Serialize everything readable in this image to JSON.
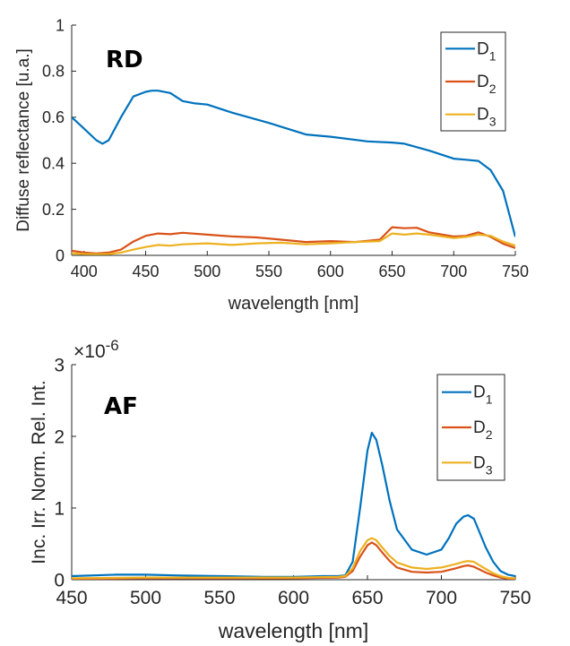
{
  "chart_data": [
    {
      "type": "line",
      "panel_tag": "RD",
      "title": "",
      "xlabel": "wavelength [nm]",
      "ylabel": "Diffuse reflectance [u.a.]",
      "xlim": [
        390,
        750
      ],
      "ylim": [
        0,
        1
      ],
      "xticks": [
        400,
        450,
        500,
        550,
        600,
        650,
        700,
        750
      ],
      "yticks": [
        0,
        0.2,
        0.4,
        0.6,
        0.8,
        1
      ],
      "ytick_labels": [
        "0",
        "0.2",
        "0.4",
        "0.6",
        "0.8",
        "1"
      ],
      "grid": false,
      "legend_position": "top-right",
      "series": [
        {
          "name": "D1",
          "label_main": "D",
          "label_sub": "1",
          "color": "#0072BD",
          "x": [
            390,
            400,
            410,
            415,
            420,
            430,
            440,
            450,
            455,
            460,
            470,
            480,
            490,
            500,
            520,
            550,
            580,
            600,
            630,
            650,
            660,
            680,
            700,
            710,
            720,
            730,
            740,
            750
          ],
          "y": [
            0.6,
            0.55,
            0.5,
            0.485,
            0.5,
            0.6,
            0.69,
            0.71,
            0.715,
            0.715,
            0.705,
            0.67,
            0.66,
            0.655,
            0.62,
            0.575,
            0.525,
            0.515,
            0.495,
            0.49,
            0.485,
            0.455,
            0.42,
            0.415,
            0.41,
            0.37,
            0.28,
            0.08
          ]
        },
        {
          "name": "D2",
          "label_main": "D",
          "label_sub": "2",
          "color": "#D95319",
          "x": [
            390,
            400,
            410,
            420,
            430,
            440,
            450,
            460,
            470,
            480,
            500,
            520,
            540,
            560,
            580,
            600,
            620,
            640,
            650,
            660,
            670,
            680,
            700,
            710,
            720,
            730,
            740,
            750
          ],
          "y": [
            0.02,
            0.012,
            0.008,
            0.012,
            0.025,
            0.06,
            0.085,
            0.095,
            0.092,
            0.098,
            0.09,
            0.082,
            0.078,
            0.068,
            0.058,
            0.062,
            0.058,
            0.068,
            0.122,
            0.118,
            0.12,
            0.1,
            0.082,
            0.085,
            0.1,
            0.08,
            0.05,
            0.032
          ]
        },
        {
          "name": "D3",
          "label_main": "D",
          "label_sub": "3",
          "color": "#EDB120",
          "x": [
            390,
            400,
            410,
            420,
            430,
            440,
            450,
            460,
            470,
            480,
            500,
            520,
            540,
            560,
            580,
            600,
            620,
            640,
            650,
            660,
            670,
            680,
            700,
            710,
            720,
            730,
            740,
            750
          ],
          "y": [
            0.008,
            0.006,
            0.005,
            0.006,
            0.012,
            0.025,
            0.036,
            0.045,
            0.042,
            0.048,
            0.052,
            0.045,
            0.052,
            0.055,
            0.048,
            0.052,
            0.058,
            0.062,
            0.095,
            0.09,
            0.095,
            0.09,
            0.075,
            0.08,
            0.09,
            0.085,
            0.06,
            0.042
          ]
        }
      ]
    },
    {
      "type": "line",
      "panel_tag": "AF",
      "title": "",
      "xlabel": "wavelength [nm]",
      "ylabel": "Inc. Irr. Norm. Rel. Int.",
      "exponent_base": "×10",
      "exponent_power": "-6",
      "xlim": [
        450,
        750
      ],
      "ylim": [
        0,
        3
      ],
      "xticks": [
        450,
        500,
        550,
        600,
        650,
        700,
        750
      ],
      "yticks": [
        0,
        1,
        2,
        3
      ],
      "ytick_labels": [
        "0",
        "1",
        "2",
        "3"
      ],
      "grid": false,
      "legend_position": "top-right",
      "series": [
        {
          "name": "D1",
          "label_main": "D",
          "label_sub": "1",
          "color": "#0072BD",
          "x": [
            450,
            480,
            500,
            520,
            550,
            580,
            600,
            620,
            630,
            635,
            640,
            645,
            650,
            653,
            656,
            660,
            665,
            670,
            680,
            690,
            700,
            705,
            710,
            715,
            718,
            722,
            725,
            730,
            735,
            740,
            745,
            750
          ],
          "y": [
            0.05,
            0.07,
            0.07,
            0.06,
            0.05,
            0.04,
            0.04,
            0.05,
            0.05,
            0.06,
            0.25,
            1.0,
            1.8,
            2.05,
            1.95,
            1.6,
            1.1,
            0.7,
            0.42,
            0.35,
            0.42,
            0.58,
            0.78,
            0.88,
            0.9,
            0.85,
            0.7,
            0.45,
            0.25,
            0.12,
            0.07,
            0.05
          ]
        },
        {
          "name": "D2",
          "label_main": "D",
          "label_sub": "2",
          "color": "#D95319",
          "x": [
            450,
            500,
            550,
            600,
            630,
            635,
            640,
            645,
            650,
            653,
            656,
            660,
            665,
            670,
            680,
            690,
            700,
            710,
            715,
            718,
            722,
            725,
            730,
            735,
            740,
            745,
            750
          ],
          "y": [
            0.01,
            0.02,
            0.02,
            0.02,
            0.03,
            0.04,
            0.12,
            0.32,
            0.48,
            0.52,
            0.48,
            0.38,
            0.26,
            0.17,
            0.11,
            0.1,
            0.11,
            0.16,
            0.19,
            0.2,
            0.18,
            0.15,
            0.1,
            0.06,
            0.03,
            0.015,
            0.01
          ]
        },
        {
          "name": "D3",
          "label_main": "D",
          "label_sub": "3",
          "color": "#EDB120",
          "x": [
            450,
            500,
            550,
            600,
            630,
            635,
            640,
            645,
            650,
            653,
            656,
            660,
            665,
            670,
            680,
            690,
            700,
            710,
            715,
            718,
            722,
            725,
            730,
            735,
            740,
            745,
            750
          ],
          "y": [
            0.02,
            0.03,
            0.03,
            0.03,
            0.04,
            0.05,
            0.16,
            0.4,
            0.55,
            0.58,
            0.55,
            0.45,
            0.33,
            0.24,
            0.17,
            0.15,
            0.17,
            0.22,
            0.25,
            0.26,
            0.25,
            0.21,
            0.15,
            0.09,
            0.05,
            0.025,
            0.02
          ]
        }
      ]
    }
  ]
}
